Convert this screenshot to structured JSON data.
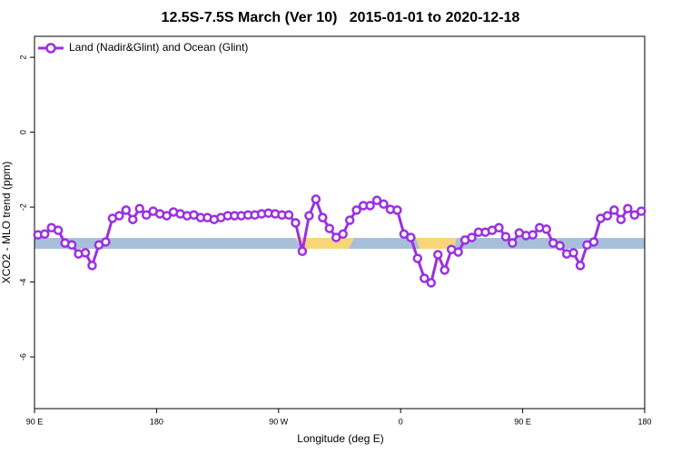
{
  "chart_data": {
    "type": "line",
    "title": "12.5S-7.5S March (Ver 10)   2015-01-01 to 2020-12-18",
    "xlabel": "Longitude (deg E)",
    "ylabel": "XCO2 - MLO trend (ppm)",
    "xlim": [
      90,
      540
    ],
    "xticks": [
      {
        "value": 90,
        "label": "90 E"
      },
      180,
      {
        "value": 270,
        "label": "90 W"
      },
      {
        "value": 360,
        "label": "0"
      },
      {
        "value": 450,
        "label": "90 E"
      },
      {
        "value": 540,
        "label": "180"
      }
    ],
    "ylim": [
      -7.38,
      2.56
    ],
    "yticks": [
      2,
      0,
      -2,
      -4,
      -6
    ],
    "legend": "top-left",
    "x": [
      92.5,
      97.5,
      102.5,
      107.5,
      112.5,
      117.5,
      122.5,
      127.5,
      132.5,
      137.5,
      142.5,
      147.5,
      152.5,
      157.5,
      162.5,
      167.5,
      172.5,
      177.5,
      182.5,
      187.5,
      192.5,
      197.5,
      202.5,
      207.5,
      212.5,
      217.5,
      222.5,
      227.5,
      232.5,
      237.5,
      242.5,
      247.5,
      252.5,
      257.5,
      262.5,
      267.5,
      272.5,
      277.5,
      282.5,
      287.5,
      292.5,
      297.5,
      302.5,
      307.5,
      312.5,
      317.5,
      322.5,
      327.5,
      332.5,
      337.5,
      342.5,
      347.5,
      352.5,
      357.5,
      362.5,
      367.5,
      372.5,
      377.5,
      382.5,
      387.5,
      392.5,
      397.5,
      402.5,
      407.5,
      412.5,
      417.5,
      422.5,
      427.5,
      432.5,
      437.5,
      442.5,
      447.5,
      452.5,
      457.5,
      462.5,
      467.5,
      472.5,
      477.5,
      482.5,
      487.5,
      492.5,
      497.5,
      502.5,
      507.5,
      512.5,
      517.5,
      522.5,
      527.5,
      532.5,
      537.5
    ],
    "series": [
      {
        "name": "Land (Nadir&Glint) and Ocean (Glint)",
        "color": "#9b30e0",
        "values": [
          -2.74,
          -2.72,
          -2.55,
          -2.62,
          -2.96,
          -3.01,
          -3.25,
          -3.22,
          -3.56,
          -3.01,
          -2.93,
          -2.3,
          -2.23,
          -2.08,
          -2.33,
          -2.04,
          -2.21,
          -2.11,
          -2.18,
          -2.23,
          -2.13,
          -2.18,
          -2.23,
          -2.21,
          -2.28,
          -2.28,
          -2.33,
          -2.28,
          -2.23,
          -2.23,
          -2.23,
          -2.21,
          -2.21,
          -2.18,
          -2.16,
          -2.18,
          -2.21,
          -2.21,
          -2.42,
          -3.18,
          -2.23,
          -1.79,
          -2.28,
          -2.57,
          -2.81,
          -2.72,
          -2.35,
          -2.08,
          -1.96,
          -1.96,
          -1.82,
          -1.92,
          -2.06,
          -2.08,
          -2.72,
          -2.81,
          -3.37,
          -3.9,
          -4.02,
          -3.27,
          -3.68,
          -3.13,
          -3.2,
          -2.88,
          -2.81,
          -2.67,
          -2.67,
          -2.62,
          -2.55,
          -2.79,
          -2.96,
          -2.69,
          -2.76,
          -2.74,
          -2.55,
          -2.59,
          -2.96,
          -3.03,
          -3.25,
          -3.22,
          -3.56,
          -3.01,
          -2.93,
          -2.3,
          -2.23,
          -2.08,
          -2.33,
          -2.04,
          -2.21,
          -2.11
        ]
      }
    ]
  }
}
